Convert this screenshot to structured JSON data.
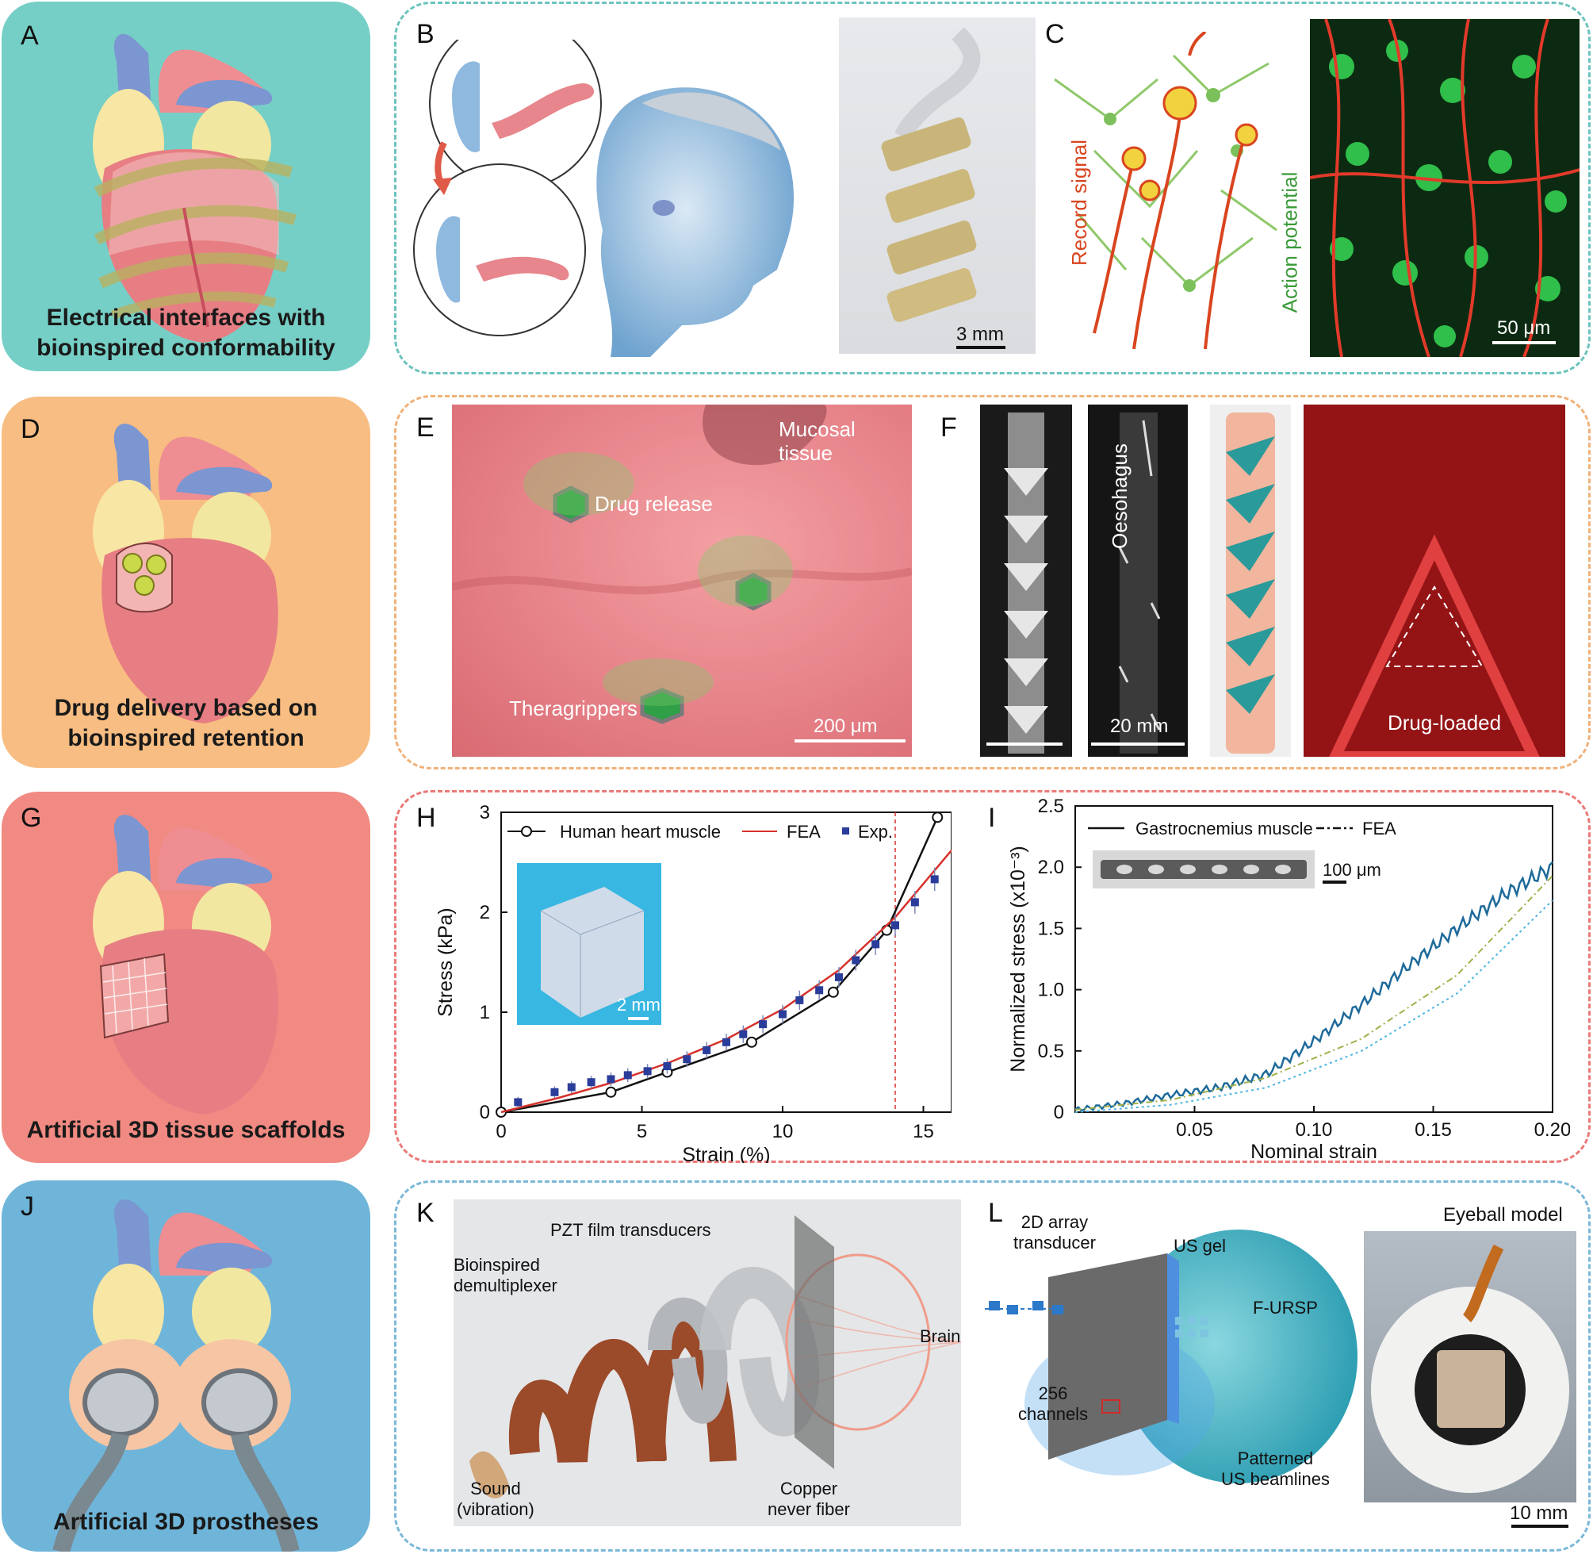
{
  "panels": {
    "A": {
      "letter": "A",
      "caption_line1": "Electrical interfaces with",
      "caption_line2": "bioinspired conformability"
    },
    "B": {
      "letter": "B",
      "scale": "3 mm"
    },
    "C": {
      "letter": "C",
      "record_signal": "Record signal",
      "action_potential": "Action potential",
      "scale": "50 μm"
    },
    "D": {
      "letter": "D",
      "caption_line1": "Drug delivery based on",
      "caption_line2": "bioinspired retention"
    },
    "E": {
      "letter": "E",
      "mucosal_line1": "Mucosal",
      "mucosal_line2": "tissue",
      "drug_release": "Drug release",
      "theragrippers": "Theragrippers",
      "scale": "200 μm"
    },
    "F": {
      "letter": "F",
      "oesophagus": "Oesohagus",
      "scale": "20 mm",
      "drug_loaded": "Drug-loaded"
    },
    "G": {
      "letter": "G",
      "caption_line1": "Artificial 3D tissue scaffolds"
    },
    "H": {
      "letter": "H",
      "inset_scale": "2 mm"
    },
    "I": {
      "letter": "I",
      "inset_scale": "100 μm"
    },
    "J": {
      "letter": "J",
      "caption_line1": "Artificial 3D prostheses"
    },
    "K": {
      "letter": "K",
      "pzt": "PZT film transducers",
      "bio_line1": "Bioinspired",
      "bio_line2": "demultiplexer",
      "brain": "Brain",
      "sound_line1": "Sound",
      "sound_line2": "(vibration)",
      "copper_line1": "Copper",
      "copper_line2": "never fiber"
    },
    "L": {
      "letter": "L",
      "array_line1": "2D array",
      "array_line2": "transducer",
      "us_gel": "US gel",
      "furs": "F-URSP",
      "channels_line1": "256",
      "channels_line2": "channels",
      "pattern_line1": "Patterned",
      "pattern_line2": "US beamlines",
      "eyeball": "Eyeball model",
      "scale": "10 mm"
    }
  },
  "colors": {
    "card_A": "#76cfc6",
    "card_D": "#f8bd82",
    "card_G": "#f18a82",
    "card_J": "#6fb5d9",
    "dash_B": "#6cc3bd",
    "dash_E": "#f0b27a",
    "dash_H": "#ea7a78",
    "dash_K": "#7bb8d8",
    "fea_red": "#d6312b",
    "exp_blue": "#2b3d9a",
    "muscle_blue": "#1e6a9a"
  },
  "chart_data": [
    {
      "type": "line",
      "panel": "H",
      "xlabel": "Strain (%)",
      "ylabel": "Stress (kPa)",
      "xlim": [
        0,
        16
      ],
      "ylim": [
        0,
        3
      ],
      "xticks": [
        "0",
        "5",
        "10",
        "15"
      ],
      "yticks": [
        "0",
        "1",
        "2",
        "3"
      ],
      "legend": [
        "Human heart muscle",
        "FEA",
        "Exp."
      ],
      "legend_position": "top",
      "vline_x": 14,
      "series": [
        {
          "name": "Human heart muscle",
          "x": [
            0,
            3.9,
            5.9,
            8.9,
            11.8,
            13.7,
            15.5
          ],
          "y": [
            0,
            0.2,
            0.4,
            0.7,
            1.2,
            1.82,
            2.95
          ]
        },
        {
          "name": "FEA",
          "x": [
            0,
            2,
            4,
            6,
            8,
            10,
            12,
            14,
            16
          ],
          "y": [
            0,
            0.14,
            0.3,
            0.5,
            0.73,
            1.03,
            1.42,
            1.95,
            2.62
          ]
        },
        {
          "name": "Exp.",
          "x": [
            0.6,
            1.9,
            2.5,
            3.2,
            3.9,
            4.5,
            5.2,
            5.9,
            6.6,
            7.3,
            8.0,
            8.6,
            9.3,
            10.0,
            10.6,
            11.3,
            12.0,
            12.6,
            13.3,
            14.0,
            14.7,
            15.4
          ],
          "y": [
            0.1,
            0.2,
            0.25,
            0.3,
            0.33,
            0.37,
            0.41,
            0.46,
            0.53,
            0.62,
            0.7,
            0.78,
            0.88,
            0.98,
            1.12,
            1.22,
            1.35,
            1.52,
            1.68,
            1.87,
            2.1,
            2.33
          ]
        }
      ]
    },
    {
      "type": "line",
      "panel": "I",
      "xlabel": "Nominal strain",
      "ylabel": "Normalized stress (x10⁻³)",
      "xlim": [
        0,
        0.2
      ],
      "ylim": [
        0,
        2.5
      ],
      "xticks": [
        "0.05",
        "0.10",
        "0.15",
        "0.20"
      ],
      "yticks": [
        "0",
        "0.5",
        "1.0",
        "1.5",
        "2.0",
        "2.5"
      ],
      "legend": [
        "Gastrocnemius muscle",
        "FEA"
      ],
      "legend_position": "top",
      "series": [
        {
          "name": "Gastrocnemius muscle",
          "x": [
            0,
            0.02,
            0.04,
            0.06,
            0.08,
            0.1,
            0.12,
            0.14,
            0.16,
            0.18,
            0.2
          ],
          "y": [
            0.02,
            0.07,
            0.14,
            0.2,
            0.31,
            0.58,
            0.88,
            1.2,
            1.5,
            1.78,
            2.0
          ]
        },
        {
          "name": "FEA",
          "x": [
            0,
            0.04,
            0.08,
            0.12,
            0.16,
            0.2
          ],
          "y": [
            0.02,
            0.1,
            0.28,
            0.6,
            1.12,
            1.93
          ]
        },
        {
          "name": "FEA",
          "x": [
            0,
            0.04,
            0.08,
            0.12,
            0.16,
            0.2
          ],
          "y": [
            0.0,
            0.06,
            0.2,
            0.5,
            0.97,
            1.73
          ]
        }
      ]
    }
  ]
}
